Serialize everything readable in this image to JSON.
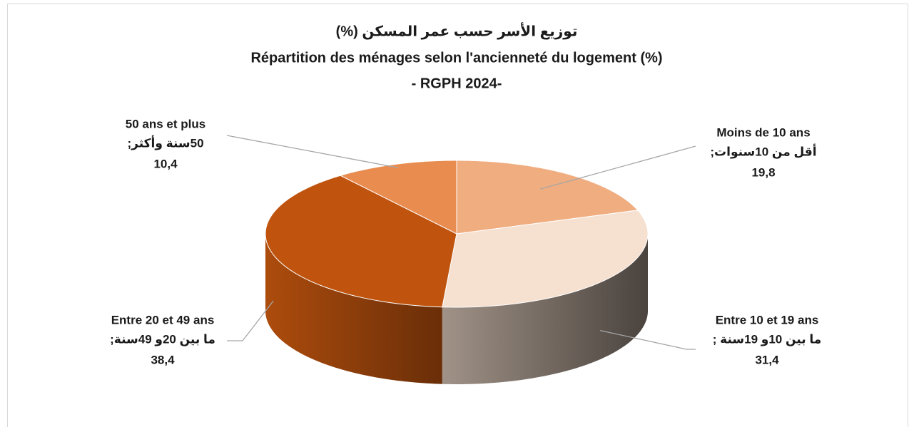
{
  "chart_data": {
    "type": "pie3d",
    "title_ar": "توزيع الأسر حسب عمر المسكن  (%)",
    "title": "Répartition des ménages selon l'ancienneté du logement (%)",
    "subtitle": "- RGPH 2024-",
    "categories": [
      "Moins de 10 ans",
      "Entre 10 et 19 ans",
      "Entre 20 et 49 ans",
      "50 ans et plus"
    ],
    "categories_ar": [
      "أقل من  10سنوات;",
      "ما بين  10و  19سنة ;",
      "ما بين   20و   49سنة;",
      "50سنة وأكثر;"
    ],
    "values": [
      19.8,
      31.4,
      38.4,
      10.4
    ],
    "value_labels": [
      "19,8",
      "31,4",
      "38,4",
      "10,4"
    ],
    "colors": [
      "#f0ad80",
      "#f6e0d0",
      "#c0540f",
      "#e98c50"
    ]
  }
}
